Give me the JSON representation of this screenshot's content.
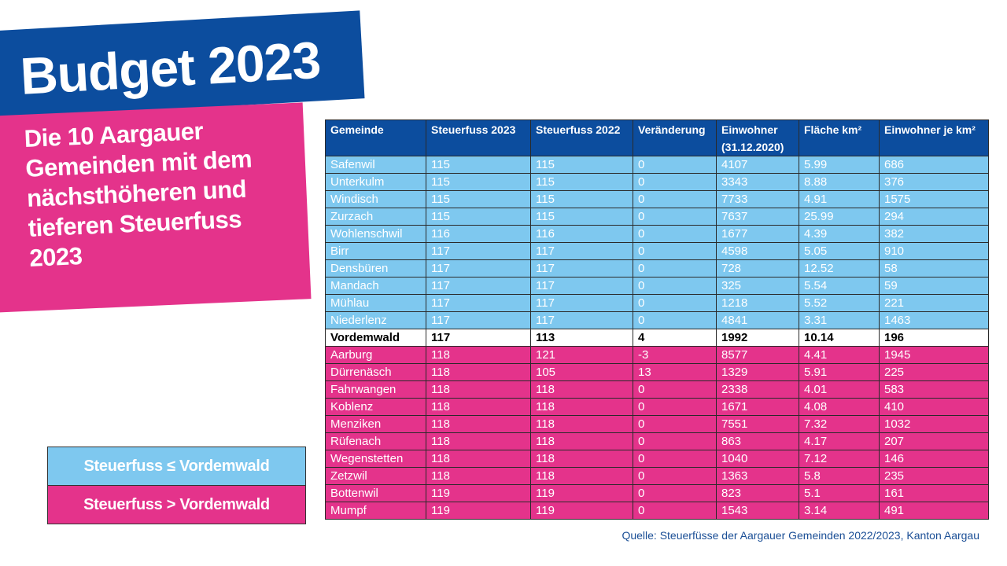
{
  "title": "Budget 2023",
  "subtitle": "Die 10 Aargauer Gemeinden mit dem nächsthöheren und tieferen Steuerfuss 2023",
  "legend": {
    "lower": "Steuerfuss ≤ Vordemwald",
    "higher": "Steuerfuss > Vordemwald"
  },
  "colors": {
    "blue": "#0c4d9e",
    "light_blue": "#7ec8ef",
    "pink": "#e4338b"
  },
  "table": {
    "headers": [
      "Gemeinde",
      "Steuerfuss 2023",
      "Steuerfuss 2022",
      "Veränderung",
      "Einwohner",
      "Fläche km²",
      "Einwohner je km²"
    ],
    "header_note": "(31.12.2020)",
    "rows": [
      {
        "group": "lower",
        "cells": [
          "Safenwil",
          "115",
          "115",
          "0",
          "4107",
          "5.99",
          "686"
        ]
      },
      {
        "group": "lower",
        "cells": [
          "Unterkulm",
          "115",
          "115",
          "0",
          "3343",
          "8.88",
          "376"
        ]
      },
      {
        "group": "lower",
        "cells": [
          "Windisch",
          "115",
          "115",
          "0",
          "7733",
          "4.91",
          "1575"
        ]
      },
      {
        "group": "lower",
        "cells": [
          "Zurzach",
          "115",
          "115",
          "0",
          "7637",
          "25.99",
          "294"
        ]
      },
      {
        "group": "lower",
        "cells": [
          "Wohlenschwil",
          "116",
          "116",
          "0",
          "1677",
          "4.39",
          "382"
        ]
      },
      {
        "group": "lower",
        "cells": [
          "Birr",
          "117",
          "117",
          "0",
          "4598",
          "5.05",
          "910"
        ]
      },
      {
        "group": "lower",
        "cells": [
          "Densbüren",
          "117",
          "117",
          "0",
          "728",
          "12.52",
          "58"
        ]
      },
      {
        "group": "lower",
        "cells": [
          "Mandach",
          "117",
          "117",
          "0",
          "325",
          "5.54",
          "59"
        ]
      },
      {
        "group": "lower",
        "cells": [
          "Mühlau",
          "117",
          "117",
          "0",
          "1218",
          "5.52",
          "221"
        ]
      },
      {
        "group": "lower",
        "cells": [
          "Niederlenz",
          "117",
          "117",
          "0",
          "4841",
          "3.31",
          "1463"
        ]
      },
      {
        "group": "ref",
        "cells": [
          "Vordemwald",
          "117",
          "113",
          "4",
          "1992",
          "10.14",
          "196"
        ]
      },
      {
        "group": "higher",
        "cells": [
          "Aarburg",
          "118",
          "121",
          "-3",
          "8577",
          "4.41",
          "1945"
        ]
      },
      {
        "group": "higher",
        "cells": [
          "Dürrenäsch",
          "118",
          "105",
          "13",
          "1329",
          "5.91",
          "225"
        ]
      },
      {
        "group": "higher",
        "cells": [
          "Fahrwangen",
          "118",
          "118",
          "0",
          "2338",
          "4.01",
          "583"
        ]
      },
      {
        "group": "higher",
        "cells": [
          "Koblenz",
          "118",
          "118",
          "0",
          "1671",
          "4.08",
          "410"
        ]
      },
      {
        "group": "higher",
        "cells": [
          "Menziken",
          "118",
          "118",
          "0",
          "7551",
          "7.32",
          "1032"
        ]
      },
      {
        "group": "higher",
        "cells": [
          "Rüfenach",
          "118",
          "118",
          "0",
          "863",
          "4.17",
          "207"
        ]
      },
      {
        "group": "higher",
        "cells": [
          "Wegenstetten",
          "118",
          "118",
          "0",
          "1040",
          "7.12",
          "146"
        ]
      },
      {
        "group": "higher",
        "cells": [
          "Zetzwil",
          "118",
          "118",
          "0",
          "1363",
          "5.8",
          "235"
        ]
      },
      {
        "group": "higher",
        "cells": [
          "Bottenwil",
          "119",
          "119",
          "0",
          "823",
          "5.1",
          "161"
        ]
      },
      {
        "group": "higher",
        "cells": [
          "Mumpf",
          "119",
          "119",
          "0",
          "1543",
          "3.14",
          "491"
        ]
      }
    ]
  },
  "source": "Quelle: Steuerfüsse der Aargauer Gemeinden 2022/2023, Kanton Aargau"
}
